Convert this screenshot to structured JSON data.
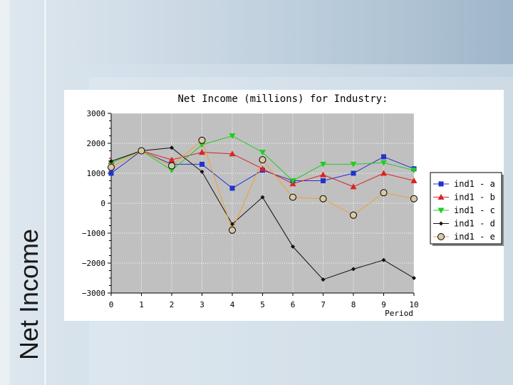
{
  "slide": {
    "side_title": "Net Income"
  },
  "chart_data": {
    "type": "line",
    "title": "Net Income (millions) for Industry:",
    "xlabel": "Period",
    "ylabel": "",
    "x": [
      0,
      1,
      2,
      3,
      4,
      5,
      6,
      7,
      8,
      9,
      10
    ],
    "x_tick_labels": [
      "0",
      "1",
      "2",
      "3",
      "4",
      "5",
      "6",
      "7",
      "8",
      "9",
      "10"
    ],
    "y_tick_values": [
      3000,
      2000,
      1000,
      0,
      -1000,
      -2000,
      -3000
    ],
    "y_tick_labels": [
      "3000",
      "2000",
      "1000",
      "0",
      "−1000",
      "−2000",
      "−3000"
    ],
    "xlim": [
      0,
      10
    ],
    "ylim": [
      -3000,
      3000
    ],
    "grid": true,
    "legend_position": "right",
    "series": [
      {
        "name": "ind1 - a",
        "color": "#2233cc",
        "marker": "square",
        "values": [
          1000,
          1750,
          1300,
          1300,
          500,
          1100,
          750,
          750,
          1000,
          1550,
          1150
        ]
      },
      {
        "name": "ind1 - b",
        "color": "#dd2222",
        "marker": "triangle-up",
        "values": [
          1400,
          1750,
          1450,
          1700,
          1650,
          1150,
          650,
          950,
          550,
          1000,
          750
        ]
      },
      {
        "name": "ind1 - c",
        "color": "#22cc22",
        "marker": "triangle-down",
        "values": [
          1350,
          1750,
          1100,
          1950,
          2250,
          1700,
          750,
          1300,
          1300,
          1350,
          1100
        ]
      },
      {
        "name": "ind1 - d",
        "color": "#111111",
        "marker": "diamond",
        "values": [
          1400,
          1750,
          1850,
          1050,
          -700,
          200,
          -1450,
          -2550,
          -2200,
          -1900,
          -2500
        ]
      },
      {
        "name": "ind1 - e",
        "color": "#f0a030",
        "marker": "circle",
        "values": [
          1200,
          1750,
          1250,
          2100,
          -900,
          1450,
          200,
          150,
          -400,
          350,
          150
        ]
      }
    ]
  }
}
